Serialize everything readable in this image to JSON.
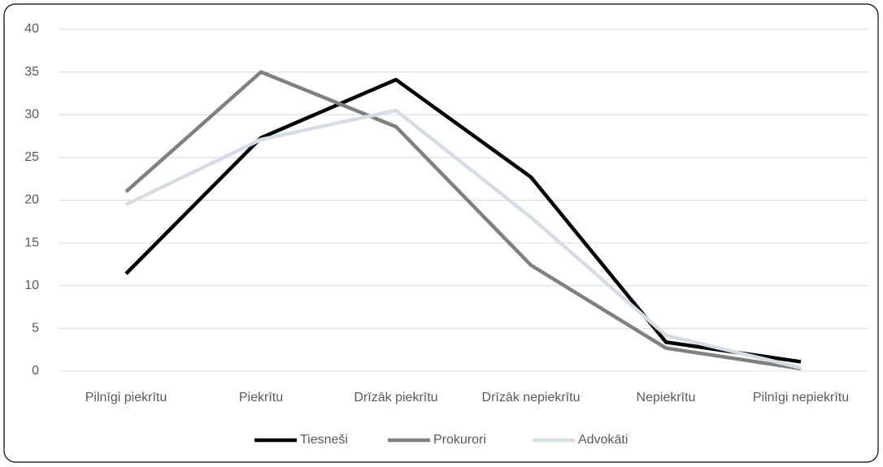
{
  "chart_data": {
    "type": "line",
    "categories": [
      "Pilnīgi piekrītu",
      "Piekrītu",
      "Drīzāk piekrītu",
      "Drīzāk nepiekrītu",
      "Nepiekrītu",
      "Pilnīgi nepiekrītu"
    ],
    "series": [
      {
        "name": "Tiesneši",
        "color": "#000000",
        "values": [
          11.4,
          27.3,
          34.1,
          22.7,
          3.4,
          1.1
        ]
      },
      {
        "name": "Prokurori",
        "color": "#808080",
        "values": [
          21.0,
          35.0,
          28.6,
          12.4,
          2.7,
          0.3
        ]
      },
      {
        "name": "Advokāti",
        "color": "#d6dce5",
        "values": [
          19.5,
          27.1,
          30.5,
          18.0,
          4.2,
          0.4
        ]
      }
    ],
    "ylim": [
      0,
      40
    ],
    "yticks": [
      0,
      5,
      10,
      15,
      20,
      25,
      30,
      35,
      40
    ],
    "grid": true,
    "legend": "bottom"
  }
}
